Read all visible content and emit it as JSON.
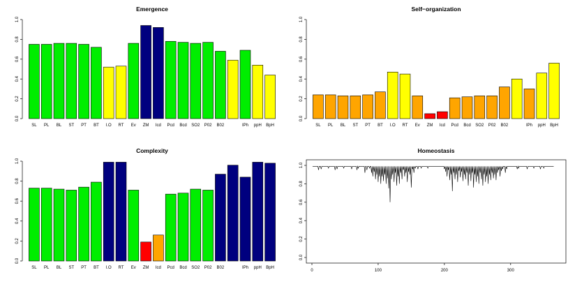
{
  "chart_data": [
    {
      "type": "bar",
      "title": "Emergence",
      "categories": [
        "SL",
        "PL",
        "BL",
        "ST",
        "PT",
        "BT",
        "I.O",
        "RT",
        "Ev",
        "ZM",
        "Icd",
        "Pcd",
        "Bcd",
        "SO2",
        "P02",
        "B02",
        "",
        "IPh",
        "ppH",
        "BpH"
      ],
      "values": [
        0.75,
        0.75,
        0.76,
        0.76,
        0.75,
        0.72,
        0.52,
        0.53,
        0.76,
        0.94,
        0.92,
        0.78,
        0.77,
        0.76,
        0.77,
        0.68,
        0.59,
        0.69,
        0.54,
        0.44
      ],
      "colors": [
        "#00ee00",
        "#00ee00",
        "#00ee00",
        "#00ee00",
        "#00ee00",
        "#00ee00",
        "#ffff00",
        "#ffff00",
        "#00ee00",
        "#00007f",
        "#00007f",
        "#00ee00",
        "#00ee00",
        "#00ee00",
        "#00ee00",
        "#00ee00",
        "#ffff00",
        "#00ee00",
        "#ffff00",
        "#ffff00"
      ],
      "ylim": [
        0,
        1
      ],
      "yticks": [
        "0.0",
        "0.2",
        "0.4",
        "0.6",
        "0.8",
        "1.0"
      ],
      "xlabel": "",
      "ylabel": ""
    },
    {
      "type": "bar",
      "title": "Self−organization",
      "categories": [
        "SL",
        "PL",
        "BL",
        "ST",
        "PT",
        "BT",
        "I.O",
        "RT",
        "Ev",
        "ZM",
        "Icd",
        "Pcd",
        "Bcd",
        "SO2",
        "P02",
        "B02",
        "",
        "IPh",
        "ppH",
        "BpH"
      ],
      "values": [
        0.24,
        0.24,
        0.23,
        0.23,
        0.24,
        0.27,
        0.47,
        0.45,
        0.23,
        0.05,
        0.07,
        0.21,
        0.22,
        0.23,
        0.23,
        0.32,
        0.4,
        0.3,
        0.46,
        0.56
      ],
      "colors": [
        "#ffa500",
        "#ffa500",
        "#ffa500",
        "#ffa500",
        "#ffa500",
        "#ffa500",
        "#ffff00",
        "#ffff00",
        "#ffa500",
        "#ff0000",
        "#ff0000",
        "#ffa500",
        "#ffa500",
        "#ffa500",
        "#ffa500",
        "#ffa500",
        "#ffff00",
        "#ffa500",
        "#ffff00",
        "#ffff00"
      ],
      "ylim": [
        0,
        1
      ],
      "yticks": [
        "0.0",
        "0.2",
        "0.4",
        "0.6",
        "0.8",
        "1.0"
      ],
      "xlabel": "",
      "ylabel": ""
    },
    {
      "type": "bar",
      "title": "Complexity",
      "categories": [
        "SL",
        "PL",
        "BL",
        "ST",
        "PT",
        "BT",
        "I.O",
        "RT",
        "Ev",
        "ZM",
        "Icd",
        "Pcd",
        "Bcd",
        "SO2",
        "P02",
        "B02",
        "",
        "IPh",
        "ppH",
        "BpH"
      ],
      "values": [
        0.73,
        0.73,
        0.72,
        0.71,
        0.74,
        0.79,
        0.99,
        0.99,
        0.71,
        0.19,
        0.26,
        0.67,
        0.68,
        0.72,
        0.71,
        0.87,
        0.96,
        0.84,
        0.99,
        0.98
      ],
      "colors": [
        "#00ee00",
        "#00ee00",
        "#00ee00",
        "#00ee00",
        "#00ee00",
        "#00ee00",
        "#00007f",
        "#00007f",
        "#00ee00",
        "#ff0000",
        "#ffa500",
        "#00ee00",
        "#00ee00",
        "#00ee00",
        "#00ee00",
        "#00007f",
        "#00007f",
        "#00007f",
        "#00007f",
        "#00007f"
      ],
      "ylim": [
        0,
        1
      ],
      "yticks": [
        "0.0",
        "0.2",
        "0.4",
        "0.6",
        "0.8",
        "1.0"
      ],
      "xlabel": "",
      "ylabel": ""
    },
    {
      "type": "line",
      "title": "Homeostasis",
      "x_range": [
        1,
        365
      ],
      "baseline": 0.99,
      "dips": [
        [
          10,
          0.95
        ],
        [
          14,
          0.96
        ],
        [
          25,
          0.97
        ],
        [
          35,
          0.95
        ],
        [
          38,
          0.96
        ],
        [
          48,
          0.97
        ],
        [
          60,
          0.96
        ],
        [
          68,
          0.95
        ],
        [
          70,
          0.97
        ],
        [
          80,
          0.92
        ],
        [
          83,
          0.95
        ],
        [
          87,
          0.97
        ],
        [
          90,
          0.92
        ],
        [
          92,
          0.88
        ],
        [
          94,
          0.93
        ],
        [
          96,
          0.85
        ],
        [
          98,
          0.9
        ],
        [
          100,
          0.82
        ],
        [
          102,
          0.88
        ],
        [
          104,
          0.8
        ],
        [
          106,
          0.88
        ],
        [
          108,
          0.83
        ],
        [
          110,
          0.9
        ],
        [
          112,
          0.8
        ],
        [
          114,
          0.86
        ],
        [
          116,
          0.75
        ],
        [
          118,
          0.6
        ],
        [
          120,
          0.85
        ],
        [
          122,
          0.9
        ],
        [
          124,
          0.82
        ],
        [
          126,
          0.92
        ],
        [
          128,
          0.78
        ],
        [
          130,
          0.88
        ],
        [
          132,
          0.8
        ],
        [
          134,
          0.92
        ],
        [
          136,
          0.85
        ],
        [
          138,
          0.95
        ],
        [
          140,
          0.88
        ],
        [
          142,
          0.92
        ],
        [
          144,
          0.82
        ],
        [
          146,
          0.93
        ],
        [
          148,
          0.9
        ],
        [
          150,
          0.76
        ],
        [
          152,
          0.96
        ],
        [
          154,
          0.92
        ],
        [
          156,
          0.97
        ],
        [
          160,
          0.96
        ],
        [
          165,
          0.97
        ],
        [
          175,
          0.97
        ],
        [
          200,
          0.96
        ],
        [
          202,
          0.93
        ],
        [
          204,
          0.88
        ],
        [
          206,
          0.95
        ],
        [
          208,
          0.84
        ],
        [
          210,
          0.9
        ],
        [
          212,
          0.72
        ],
        [
          214,
          0.92
        ],
        [
          216,
          0.85
        ],
        [
          218,
          0.9
        ],
        [
          220,
          0.82
        ],
        [
          222,
          0.94
        ],
        [
          224,
          0.87
        ],
        [
          226,
          0.93
        ],
        [
          228,
          0.83
        ],
        [
          230,
          0.9
        ],
        [
          232,
          0.85
        ],
        [
          234,
          0.92
        ],
        [
          236,
          0.78
        ],
        [
          238,
          0.9
        ],
        [
          240,
          0.83
        ],
        [
          242,
          0.92
        ],
        [
          244,
          0.76
        ],
        [
          246,
          0.9
        ],
        [
          248,
          0.82
        ],
        [
          250,
          0.88
        ],
        [
          252,
          0.8
        ],
        [
          254,
          0.92
        ],
        [
          256,
          0.85
        ],
        [
          258,
          0.78
        ],
        [
          260,
          0.9
        ],
        [
          262,
          0.82
        ],
        [
          264,
          0.88
        ],
        [
          266,
          0.8
        ],
        [
          268,
          0.9
        ],
        [
          270,
          0.84
        ],
        [
          272,
          0.92
        ],
        [
          274,
          0.86
        ],
        [
          276,
          0.9
        ],
        [
          278,
          0.84
        ],
        [
          280,
          0.92
        ],
        [
          282,
          0.95
        ],
        [
          284,
          0.88
        ],
        [
          286,
          0.94
        ],
        [
          288,
          0.96
        ],
        [
          292,
          0.92
        ],
        [
          294,
          0.96
        ],
        [
          310,
          0.96
        ],
        [
          312,
          0.97
        ],
        [
          325,
          0.96
        ],
        [
          335,
          0.97
        ],
        [
          345,
          0.96
        ],
        [
          350,
          0.97
        ]
      ],
      "ylim": [
        0,
        1
      ],
      "xlim": [
        0,
        375
      ],
      "yticks": [
        "0.0",
        "0.2",
        "0.4",
        "0.6",
        "0.8",
        "1.0"
      ],
      "xticks": [
        "0",
        "100",
        "200",
        "300"
      ],
      "xlabel": "",
      "ylabel": ""
    }
  ]
}
